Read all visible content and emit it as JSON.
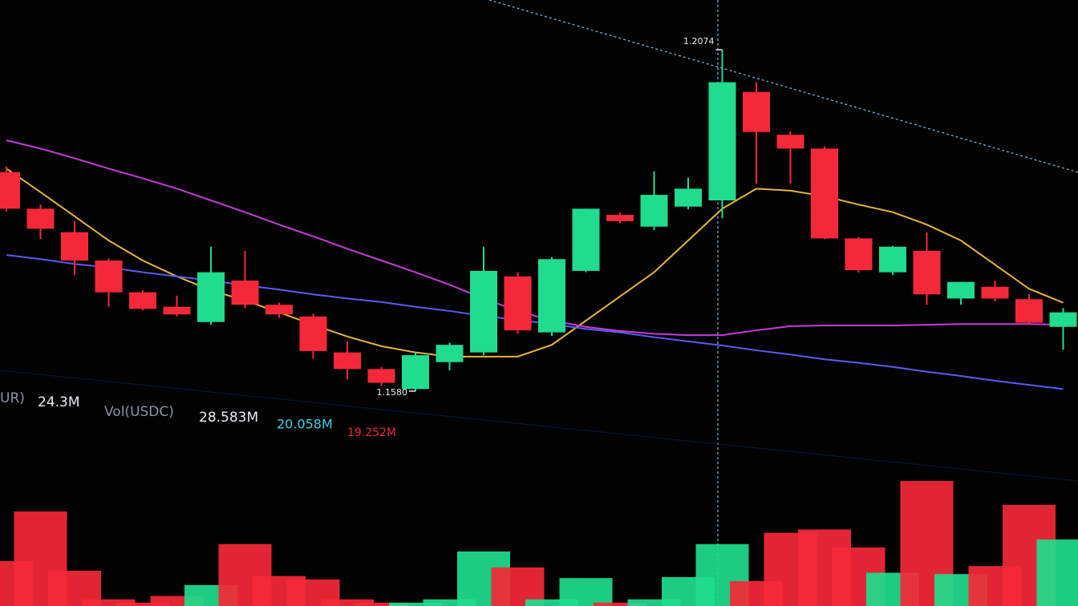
{
  "chart_data": {
    "type": "candlestick",
    "ylim": [
      1.1566,
      1.2146
    ],
    "up_color": "#1fdc8e",
    "down_color": "#f5283a",
    "open": [
      1.1897,
      1.1844,
      1.181,
      1.1769,
      1.1723,
      1.1702,
      1.168,
      1.174,
      1.1705,
      1.1688,
      1.1636,
      1.1612,
      1.1583,
      1.1622,
      1.1636,
      1.1746,
      1.1665,
      1.1754,
      1.1835,
      1.1818,
      1.1847,
      1.1856,
      1.2013,
      1.1951,
      1.1931,
      1.1801,
      1.1752,
      1.1783,
      1.1714,
      1.1731,
      1.1713,
      1.1673
    ],
    "high": [
      1.1905,
      1.185,
      1.1826,
      1.1772,
      1.1726,
      1.1718,
      1.1789,
      1.1783,
      1.1708,
      1.1692,
      1.1652,
      1.1615,
      1.1636,
      1.165,
      1.1789,
      1.1752,
      1.1774,
      1.1844,
      1.1838,
      1.1898,
      1.1889,
      1.2074,
      1.2027,
      1.1956,
      1.1934,
      1.1803,
      1.179,
      1.181,
      1.1738,
      1.174,
      1.172,
      1.17
    ],
    "low": [
      1.184,
      1.18,
      1.1748,
      1.1702,
      1.1697,
      1.1688,
      1.1676,
      1.17,
      1.1686,
      1.1627,
      1.1597,
      1.1588,
      1.158,
      1.161,
      1.1632,
      1.1663,
      1.166,
      1.1752,
      1.1823,
      1.1813,
      1.1843,
      1.183,
      1.188,
      1.188,
      1.18,
      1.1752,
      1.1748,
      1.1705,
      1.1705,
      1.171,
      1.1676,
      1.164
    ],
    "close": [
      1.1844,
      1.1815,
      1.1769,
      1.1723,
      1.1699,
      1.1691,
      1.1752,
      1.1705,
      1.1691,
      1.1638,
      1.1612,
      1.1592,
      1.1632,
      1.1647,
      1.1754,
      1.1668,
      1.1771,
      1.1844,
      1.1826,
      1.1864,
      1.1873,
      1.2027,
      1.1955,
      1.1931,
      1.1801,
      1.1755,
      1.1789,
      1.172,
      1.1738,
      1.1714,
      1.1679,
      1.1694
    ],
    "moving_averages": [
      {
        "color": "#e6b43c",
        "values": [
          1.1902,
          1.1868,
          1.1833,
          1.1798,
          1.1769,
          1.1746,
          1.1726,
          1.1711,
          1.1694,
          1.1676,
          1.1659,
          1.1645,
          1.1636,
          1.163,
          1.163,
          1.163,
          1.1647,
          1.1682,
          1.1717,
          1.1752,
          1.1798,
          1.1844,
          1.1873,
          1.187,
          1.1862,
          1.185,
          1.1839,
          1.1821,
          1.1798,
          1.1763,
          1.1728,
          1.1708
        ]
      },
      {
        "color": "#c43cd8",
        "values": [
          1.1943,
          1.1931,
          1.1917,
          1.1902,
          1.1888,
          1.1873,
          1.1856,
          1.1839,
          1.1821,
          1.1804,
          1.1786,
          1.1769,
          1.1752,
          1.1734,
          1.1714,
          1.1696,
          1.1682,
          1.1673,
          1.1667,
          1.1663,
          1.1661,
          1.1661,
          1.1668,
          1.1674,
          1.1675,
          1.1675,
          1.1675,
          1.1676,
          1.1677,
          1.1677,
          1.1677,
          1.1676
        ]
      },
      {
        "color": "#5a5cf0",
        "values": [
          1.1777,
          1.1771,
          1.1764,
          1.1759,
          1.1752,
          1.1746,
          1.174,
          1.1733,
          1.1727,
          1.172,
          1.1714,
          1.1709,
          1.1702,
          1.1696,
          1.1689,
          1.1683,
          1.1677,
          1.167,
          1.1665,
          1.1658,
          1.1652,
          1.1646,
          1.1639,
          1.1633,
          1.1626,
          1.1621,
          1.1615,
          1.1608,
          1.1602,
          1.1595,
          1.1589,
          1.1583
        ]
      }
    ],
    "annotations": [
      {
        "value": 1.2074,
        "label": "1.2074",
        "index": 21
      },
      {
        "value": 1.158,
        "label": "1.1580",
        "index": 12
      }
    ],
    "volume_ylim": [
      0,
      40
    ],
    "volume": [
      13.5,
      28.4,
      10.6,
      2,
      1,
      3,
      6.3,
      18.6,
      9,
      8,
      2,
      1,
      1,
      2,
      16.4,
      11.6,
      2,
      8.4,
      1,
      2,
      8.7,
      18.6,
      7.5,
      22,
      23,
      17.6,
      10,
      37.6,
      9.6,
      12,
      30.4,
      20
    ],
    "volume_legend": [
      {
        "text": "UR)",
        "color": "#8a93a6"
      },
      {
        "text": "24.3M",
        "color": "#e8ecf2"
      },
      {
        "text": "Vol(USDC)",
        "color": "#8a93a6"
      },
      {
        "text": "28.583M",
        "color": "#e8ecf2"
      },
      {
        "text": "20.058M",
        "color": "#3ed0e6"
      },
      {
        "text": "19.252M",
        "color": "#e8283a"
      }
    ]
  }
}
